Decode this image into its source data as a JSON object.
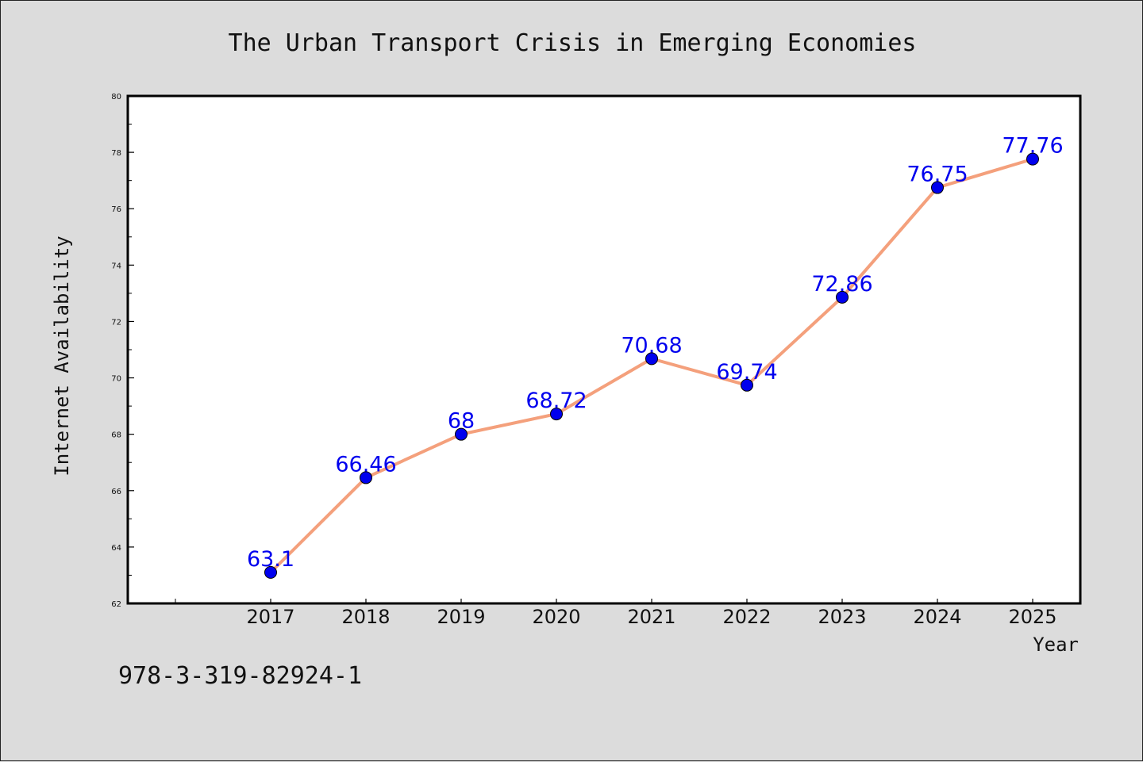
{
  "chart_data": {
    "type": "line",
    "title": "The Urban Transport Crisis in Emerging Economies",
    "xlabel": "Year",
    "ylabel": "Internet Availability",
    "categories": [
      "2017",
      "2018",
      "2019",
      "2020",
      "2021",
      "2022",
      "2023",
      "2024",
      "2025"
    ],
    "series": [
      {
        "values": [
          63.1,
          66.46,
          68,
          68.72,
          70.68,
          69.74,
          72.86,
          76.75,
          77.76
        ],
        "labels": [
          "63.1",
          "66.46",
          "68",
          "68.72",
          "70.68",
          "69.74",
          "72.86",
          "76.75",
          "77.76"
        ],
        "line_color": "#f4a07c",
        "marker_color": "#0000ee",
        "label_color": "#0000ee"
      }
    ],
    "ylim": [
      62,
      80
    ],
    "yticks": [
      "62",
      "64",
      "66",
      "68",
      "70",
      "72",
      "74",
      "76",
      "78",
      "80"
    ],
    "grid": false,
    "legend": "none"
  },
  "footer": {
    "code": "978-3-319-82924-1"
  },
  "colors": {
    "background": "#dcdcdc",
    "plot_area": "#ffffff",
    "axis": "#000000",
    "text": "#111111"
  }
}
